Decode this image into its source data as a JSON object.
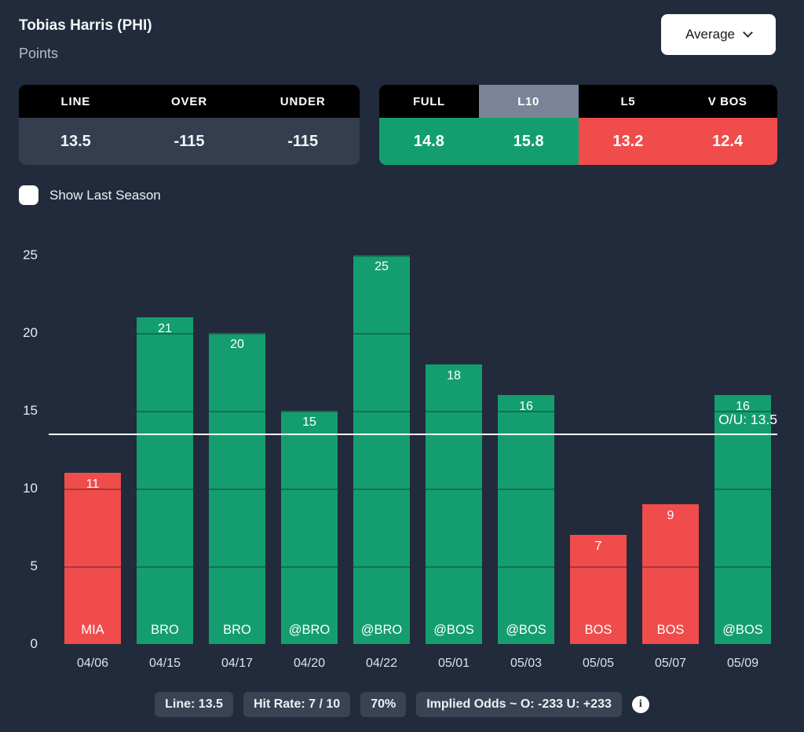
{
  "header": {
    "player_name": "Tobias Harris (PHI)",
    "stat_label": "Points",
    "average_selector": "Average"
  },
  "odds_table": {
    "col_line": "LINE",
    "col_over": "OVER",
    "col_under": "UNDER",
    "line_value": "13.5",
    "over_value": "-115",
    "under_value": "-115"
  },
  "splits_table": {
    "tabs": [
      {
        "label": "FULL",
        "value": "14.8",
        "tone": "green",
        "active": false
      },
      {
        "label": "L10",
        "value": "15.8",
        "tone": "green",
        "active": true
      },
      {
        "label": "L5",
        "value": "13.2",
        "tone": "red",
        "active": false
      },
      {
        "label": "V BOS",
        "value": "12.4",
        "tone": "red",
        "active": false
      }
    ]
  },
  "controls": {
    "show_last_season_label": "Show Last Season",
    "checked": false
  },
  "chart_data": {
    "type": "bar",
    "title": "",
    "x": [
      "04/06",
      "04/15",
      "04/17",
      "04/20",
      "04/22",
      "05/01",
      "05/03",
      "05/05",
      "05/07",
      "05/09"
    ],
    "opponents": [
      "MIA",
      "BRO",
      "BRO",
      "@BRO",
      "@BRO",
      "@BOS",
      "@BOS",
      "BOS",
      "BOS",
      "@BOS"
    ],
    "values": [
      11,
      21,
      20,
      15,
      25,
      18,
      16,
      7,
      9,
      16
    ],
    "bar_colors": [
      "red",
      "green",
      "green",
      "green",
      "green",
      "green",
      "green",
      "red",
      "red",
      "green"
    ],
    "yticks": [
      0,
      5,
      10,
      15,
      20,
      25
    ],
    "ylim": [
      0,
      25
    ],
    "ou_line": 13.5,
    "ou_label": "O/U: 13.5",
    "grid": "segment-lines-inside-bars",
    "legend": "none"
  },
  "footer": {
    "badges": [
      "Line: 13.5",
      "Hit Rate: 7 / 10",
      "70%",
      "Implied Odds ~ O: -233 U: +233"
    ]
  },
  "colors": {
    "background": "#212b3b",
    "bar_green": "#149e6f",
    "bar_red": "#f04c4c",
    "over_text": "#2bc274",
    "under_text": "#f25757",
    "line_value_text": "#a9b3e8",
    "tab_active_bg": "#7b8398",
    "table_header_bg": "#000000",
    "odds_value_bg": "#353e4e",
    "badge_bg": "#3a4354",
    "ou_line_color": "#ffffff"
  }
}
